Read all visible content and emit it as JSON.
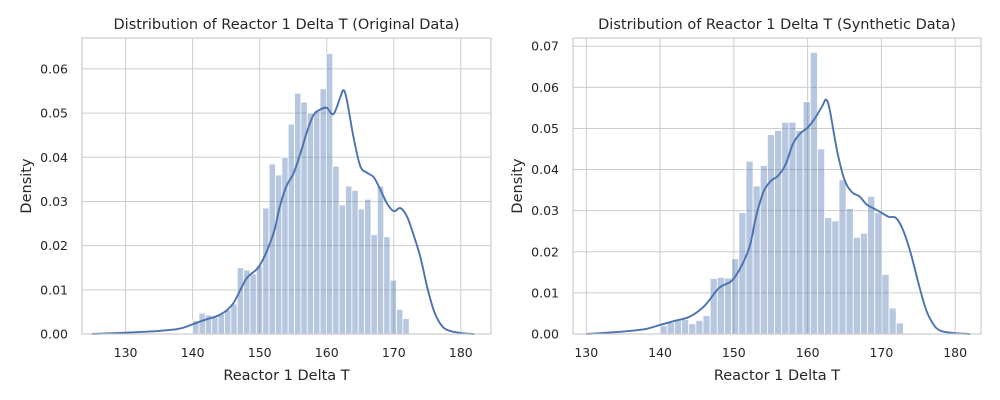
{
  "chart_data": [
    {
      "type": "histogram",
      "title": "Distribution of Reactor 1 Delta T (Original Data)",
      "xlabel": "Reactor 1 Delta T",
      "ylabel": "Density",
      "xlim": [
        123.5,
        184.5
      ],
      "ylim": [
        0,
        0.067
      ],
      "xticks": [
        130,
        140,
        150,
        160,
        170,
        180
      ],
      "yticks": [
        0.0,
        0.01,
        0.02,
        0.03,
        0.04,
        0.05,
        0.06
      ],
      "ytick_labels": [
        "0.00",
        "0.01",
        "0.02",
        "0.03",
        "0.04",
        "0.05",
        "0.06"
      ],
      "grid": true,
      "bin_start": 140,
      "bin_width": 0.95,
      "bar_values": [
        0.003,
        0.0047,
        0.0043,
        0.0037,
        0.0045,
        0.0055,
        0.0068,
        0.015,
        0.0145,
        0.0136,
        0.0155,
        0.0285,
        0.0385,
        0.036,
        0.04,
        0.0475,
        0.0545,
        0.0525,
        0.05,
        0.0505,
        0.0555,
        0.0635,
        0.038,
        0.0292,
        0.0335,
        0.0325,
        0.0283,
        0.0305,
        0.0225,
        0.0335,
        0.022,
        0.0122,
        0.0056,
        0.0035
      ],
      "kde_x": [
        125,
        130,
        135,
        138,
        140,
        142,
        144,
        146,
        148,
        150,
        152,
        153,
        154,
        155,
        156,
        157,
        158,
        159,
        160,
        161,
        162,
        162.5,
        163,
        164,
        165,
        166,
        167,
        168,
        169,
        170,
        171,
        172,
        173,
        174,
        175,
        176,
        177,
        178,
        180,
        182
      ],
      "kde_y": [
        0.0,
        0.0003,
        0.0007,
        0.0012,
        0.0022,
        0.0033,
        0.0043,
        0.0068,
        0.0125,
        0.0155,
        0.0225,
        0.0288,
        0.0335,
        0.0362,
        0.0405,
        0.0455,
        0.0495,
        0.0508,
        0.0512,
        0.0498,
        0.0535,
        0.0552,
        0.053,
        0.0445,
        0.038,
        0.0365,
        0.0355,
        0.0327,
        0.0295,
        0.0278,
        0.0285,
        0.0265,
        0.0222,
        0.0172,
        0.0105,
        0.0052,
        0.0022,
        0.0009,
        0.0002,
        0.0
      ]
    },
    {
      "type": "histogram",
      "title": "Distribution of Reactor 1 Delta T (Synthetic Data)",
      "xlabel": "Reactor 1 Delta T",
      "ylabel": "Density",
      "xlim": [
        128.2,
        183.5
      ],
      "ylim": [
        0,
        0.072
      ],
      "xticks": [
        130,
        140,
        150,
        160,
        170,
        180
      ],
      "yticks": [
        0.0,
        0.01,
        0.02,
        0.03,
        0.04,
        0.05,
        0.06,
        0.07
      ],
      "ytick_labels": [
        "0.00",
        "0.01",
        "0.02",
        "0.03",
        "0.04",
        "0.05",
        "0.06",
        "0.07"
      ],
      "grid": true,
      "bin_start": 140,
      "bin_width": 0.97,
      "bar_values": [
        0.002,
        0.0028,
        0.0033,
        0.0035,
        0.0025,
        0.0033,
        0.0045,
        0.0135,
        0.0138,
        0.0136,
        0.0183,
        0.0295,
        0.042,
        0.036,
        0.041,
        0.0485,
        0.0495,
        0.0515,
        0.0515,
        0.0495,
        0.0565,
        0.0685,
        0.045,
        0.0283,
        0.0275,
        0.0375,
        0.0305,
        0.0235,
        0.0245,
        0.0335,
        0.0295,
        0.0145,
        0.0063,
        0.0027
      ],
      "kde_x": [
        130,
        135,
        138,
        140,
        142,
        144,
        146,
        148,
        150,
        152,
        153,
        154,
        155,
        156,
        157,
        158,
        159,
        160,
        161,
        162,
        162.5,
        163,
        164,
        165,
        166,
        167,
        168,
        169,
        170,
        171,
        172,
        173,
        174,
        175,
        176,
        177,
        178,
        180,
        182
      ],
      "kde_y": [
        0.0,
        0.0006,
        0.0012,
        0.0022,
        0.0032,
        0.0042,
        0.0068,
        0.0112,
        0.0135,
        0.0205,
        0.0285,
        0.0345,
        0.0372,
        0.0385,
        0.0412,
        0.0462,
        0.0488,
        0.0502,
        0.0525,
        0.0555,
        0.057,
        0.0545,
        0.0445,
        0.0375,
        0.0345,
        0.0335,
        0.0315,
        0.0305,
        0.0295,
        0.0285,
        0.0282,
        0.025,
        0.0195,
        0.0125,
        0.0062,
        0.0025,
        0.0008,
        0.0002,
        0.0
      ]
    }
  ]
}
